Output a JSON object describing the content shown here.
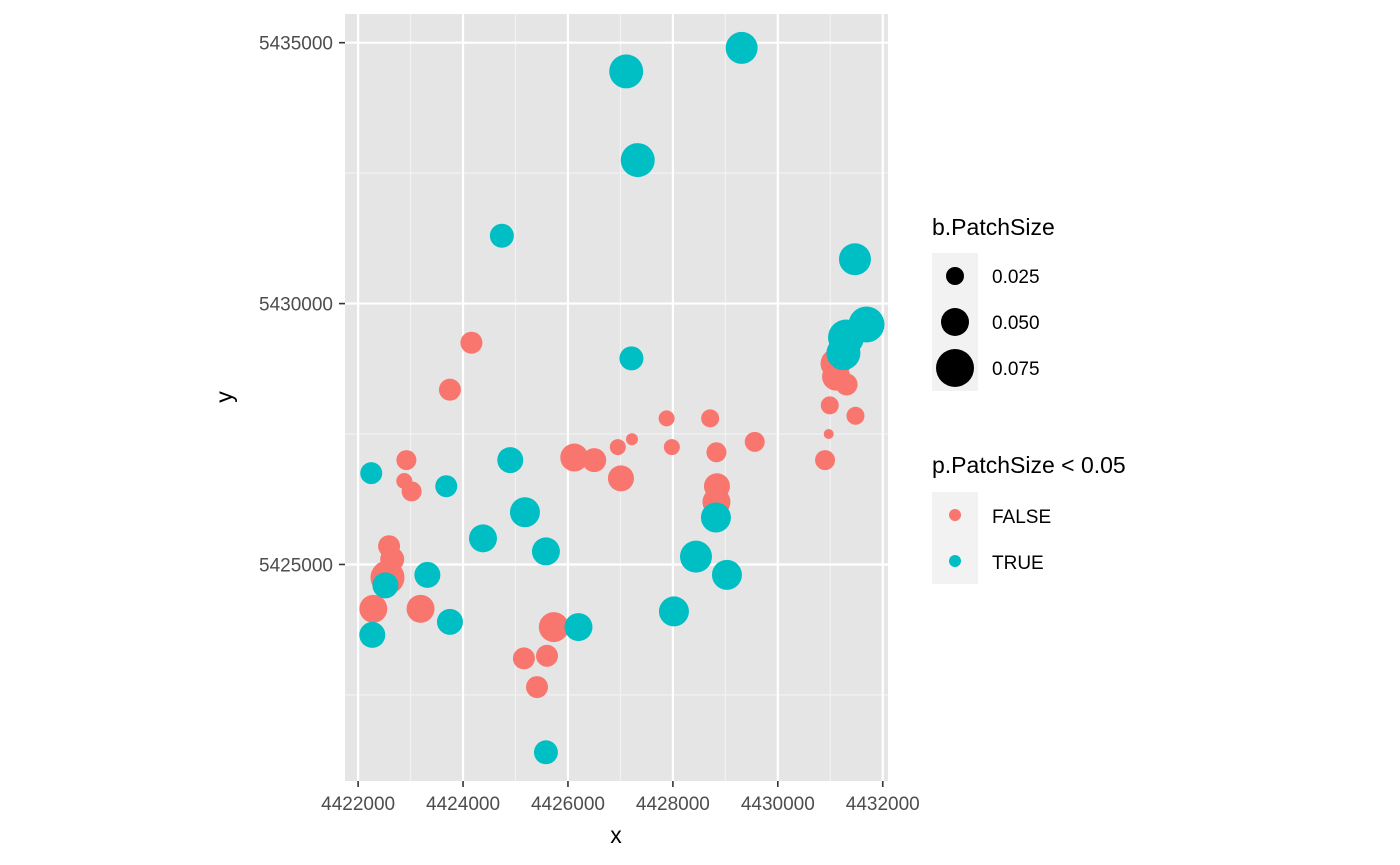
{
  "chart_data": {
    "type": "scatter",
    "xlabel": "x",
    "ylabel": "y",
    "xlim": [
      4421750,
      4432100
    ],
    "ylim": [
      5420850,
      5435550
    ],
    "xticks": [
      4422000,
      4424000,
      4426000,
      4428000,
      4430000,
      4432000
    ],
    "xtick_labels": [
      "4422000",
      "4424000",
      "4426000",
      "4428000",
      "4430000",
      "4432000"
    ],
    "yticks": [
      5425000,
      5430000,
      5435000
    ],
    "ytick_labels": [
      "5425000",
      "5430000",
      "5435000"
    ],
    "grid": true,
    "background": "#e5e5e5",
    "legend_position": "right",
    "legends": {
      "size": {
        "title": "b.PatchSize",
        "entries": [
          {
            "label": "0.025",
            "value": 0.025
          },
          {
            "label": "0.050",
            "value": 0.05
          },
          {
            "label": "0.075",
            "value": 0.075
          }
        ]
      },
      "color": {
        "title": "p.PatchSize < 0.05",
        "entries": [
          {
            "label": "FALSE",
            "color": "#F8766D"
          },
          {
            "label": "TRUE",
            "color": "#00BFC4"
          }
        ]
      }
    },
    "series": [
      {
        "label": "FALSE",
        "color": "#F8766D",
        "points": [
          {
            "x": 4422290,
            "y": 5424150,
            "b": 0.05
          },
          {
            "x": 4422560,
            "y": 5424750,
            "b": 0.065
          },
          {
            "x": 4422650,
            "y": 5425100,
            "b": 0.04
          },
          {
            "x": 4422590,
            "y": 5425350,
            "b": 0.035
          },
          {
            "x": 4422880,
            "y": 5426600,
            "b": 0.02
          },
          {
            "x": 4422920,
            "y": 5427000,
            "b": 0.03
          },
          {
            "x": 4423020,
            "y": 5426400,
            "b": 0.03
          },
          {
            "x": 4423190,
            "y": 5424150,
            "b": 0.05
          },
          {
            "x": 4423750,
            "y": 5428350,
            "b": 0.035
          },
          {
            "x": 4424160,
            "y": 5429250,
            "b": 0.035
          },
          {
            "x": 4425160,
            "y": 5423200,
            "b": 0.035
          },
          {
            "x": 4425410,
            "y": 5422650,
            "b": 0.035
          },
          {
            "x": 4425600,
            "y": 5423250,
            "b": 0.035
          },
          {
            "x": 4425730,
            "y": 5423800,
            "b": 0.055
          },
          {
            "x": 4426120,
            "y": 5427050,
            "b": 0.05
          },
          {
            "x": 4426500,
            "y": 5427000,
            "b": 0.04
          },
          {
            "x": 4426950,
            "y": 5427250,
            "b": 0.02
          },
          {
            "x": 4427010,
            "y": 5426650,
            "b": 0.045
          },
          {
            "x": 4427220,
            "y": 5427400,
            "b": 0.01
          },
          {
            "x": 4427880,
            "y": 5427800,
            "b": 0.02
          },
          {
            "x": 4427980,
            "y": 5427250,
            "b": 0.02
          },
          {
            "x": 4428710,
            "y": 5427800,
            "b": 0.025
          },
          {
            "x": 4428830,
            "y": 5427150,
            "b": 0.03
          },
          {
            "x": 4428840,
            "y": 5426500,
            "b": 0.045
          },
          {
            "x": 4428830,
            "y": 5426200,
            "b": 0.05
          },
          {
            "x": 4429560,
            "y": 5427350,
            "b": 0.03
          },
          {
            "x": 4430900,
            "y": 5427000,
            "b": 0.03
          },
          {
            "x": 4430970,
            "y": 5427500,
            "b": 0.005
          },
          {
            "x": 4430990,
            "y": 5428050,
            "b": 0.025
          },
          {
            "x": 4431100,
            "y": 5428850,
            "b": 0.055
          },
          {
            "x": 4431110,
            "y": 5428600,
            "b": 0.05
          },
          {
            "x": 4431310,
            "y": 5428450,
            "b": 0.035
          },
          {
            "x": 4431480,
            "y": 5427850,
            "b": 0.025
          }
        ]
      },
      {
        "label": "TRUE",
        "color": "#00BFC4",
        "points": [
          {
            "x": 4422250,
            "y": 5426750,
            "b": 0.035
          },
          {
            "x": 4422270,
            "y": 5423650,
            "b": 0.045
          },
          {
            "x": 4422520,
            "y": 5424600,
            "b": 0.045
          },
          {
            "x": 4423320,
            "y": 5424800,
            "b": 0.045
          },
          {
            "x": 4423680,
            "y": 5426500,
            "b": 0.035
          },
          {
            "x": 4423750,
            "y": 5423900,
            "b": 0.045
          },
          {
            "x": 4424380,
            "y": 5425500,
            "b": 0.05
          },
          {
            "x": 4424740,
            "y": 5431300,
            "b": 0.04
          },
          {
            "x": 4424900,
            "y": 5427000,
            "b": 0.045
          },
          {
            "x": 4425180,
            "y": 5426000,
            "b": 0.055
          },
          {
            "x": 4425580,
            "y": 5425250,
            "b": 0.05
          },
          {
            "x": 4425580,
            "y": 5421400,
            "b": 0.04
          },
          {
            "x": 4426200,
            "y": 5423800,
            "b": 0.05
          },
          {
            "x": 4427110,
            "y": 5434450,
            "b": 0.065
          },
          {
            "x": 4427210,
            "y": 5428950,
            "b": 0.04
          },
          {
            "x": 4427330,
            "y": 5432750,
            "b": 0.065
          },
          {
            "x": 4428020,
            "y": 5424100,
            "b": 0.055
          },
          {
            "x": 4428440,
            "y": 5425150,
            "b": 0.06
          },
          {
            "x": 4428820,
            "y": 5425900,
            "b": 0.055
          },
          {
            "x": 4429030,
            "y": 5424800,
            "b": 0.055
          },
          {
            "x": 4429310,
            "y": 5434900,
            "b": 0.06
          },
          {
            "x": 4431250,
            "y": 5429050,
            "b": 0.065
          },
          {
            "x": 4431300,
            "y": 5429350,
            "b": 0.07
          },
          {
            "x": 4431470,
            "y": 5430850,
            "b": 0.06
          },
          {
            "x": 4431690,
            "y": 5429600,
            "b": 0.07
          }
        ]
      }
    ]
  }
}
